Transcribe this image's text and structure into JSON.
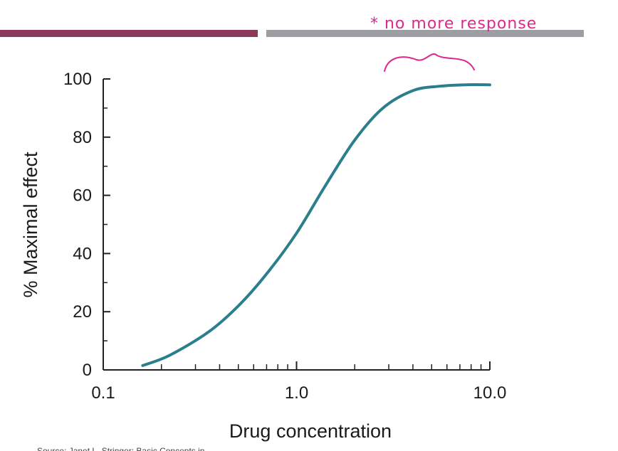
{
  "decor": {
    "bar_left_color": "#8c3a5c",
    "bar_right_color": "#9c9ea3"
  },
  "annotation": {
    "text": "* no more response",
    "color": "#e0278a"
  },
  "source_text": "Source: Janet L. Stringer: Basic Concepts in",
  "chart_data": {
    "type": "line",
    "xscale": "log",
    "xlim": [
      0.1,
      10.0
    ],
    "ylim": [
      0,
      100
    ],
    "xticks_major": [
      0.1,
      1.0,
      10.0
    ],
    "xtick_labels": [
      "0.1",
      "1.0",
      "10.0"
    ],
    "yticks": [
      0,
      20,
      40,
      60,
      80,
      100
    ],
    "ytick_labels": [
      "0",
      "20",
      "40",
      "60",
      "80",
      "100"
    ],
    "xlabel": "Drug concentration",
    "ylabel": "% Maximal effect",
    "line_color": "#2b7f8c",
    "grid": false,
    "series": [
      {
        "x": [
          0.16,
          0.22,
          0.35,
          0.5,
          0.7,
          1.0,
          1.4,
          2.0,
          2.8,
          4.0,
          5.5,
          7.5,
          10.0
        ],
        "y": [
          1.5,
          5,
          13,
          22,
          33,
          47,
          63,
          79,
          90,
          96,
          97.5,
          98,
          98
        ]
      }
    ]
  }
}
